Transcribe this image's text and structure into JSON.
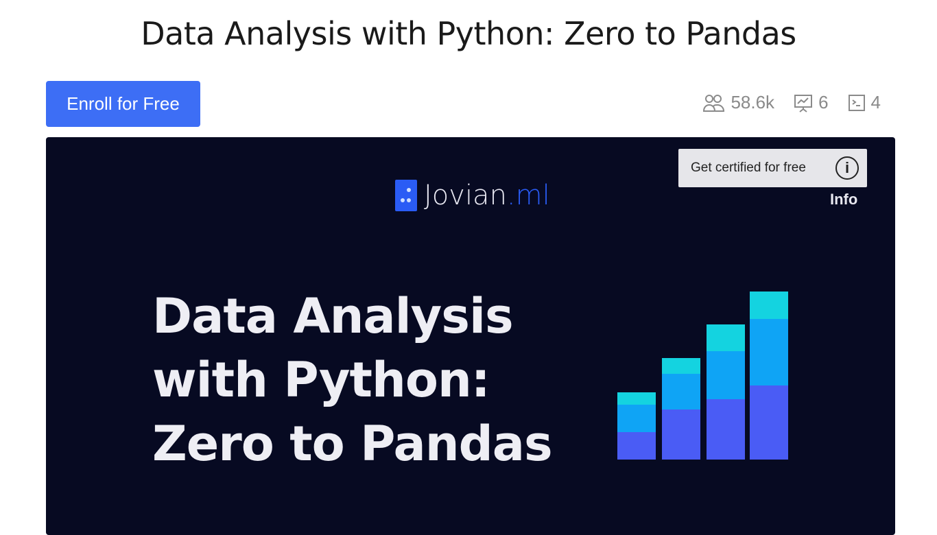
{
  "page": {
    "title": "Data Analysis with Python: Zero to Pandas",
    "enroll_label": "Enroll for Free"
  },
  "stats": [
    {
      "icon": "users-icon",
      "value": "58.6k"
    },
    {
      "icon": "presentation-icon",
      "value": "6"
    },
    {
      "icon": "terminal-icon",
      "value": "4"
    }
  ],
  "banner": {
    "cert_label": "Get certified for free",
    "info_label": "Info",
    "logo_main": "Jovian",
    "logo_suffix": ".ml",
    "headline": [
      "Data Analysis",
      "with Python:",
      "Zero to Pandas"
    ],
    "colors": {
      "background": "#070a22",
      "cyan": "#14d3e0",
      "blue": "#0fa4f5",
      "indigo": "#4a5cf5"
    }
  }
}
